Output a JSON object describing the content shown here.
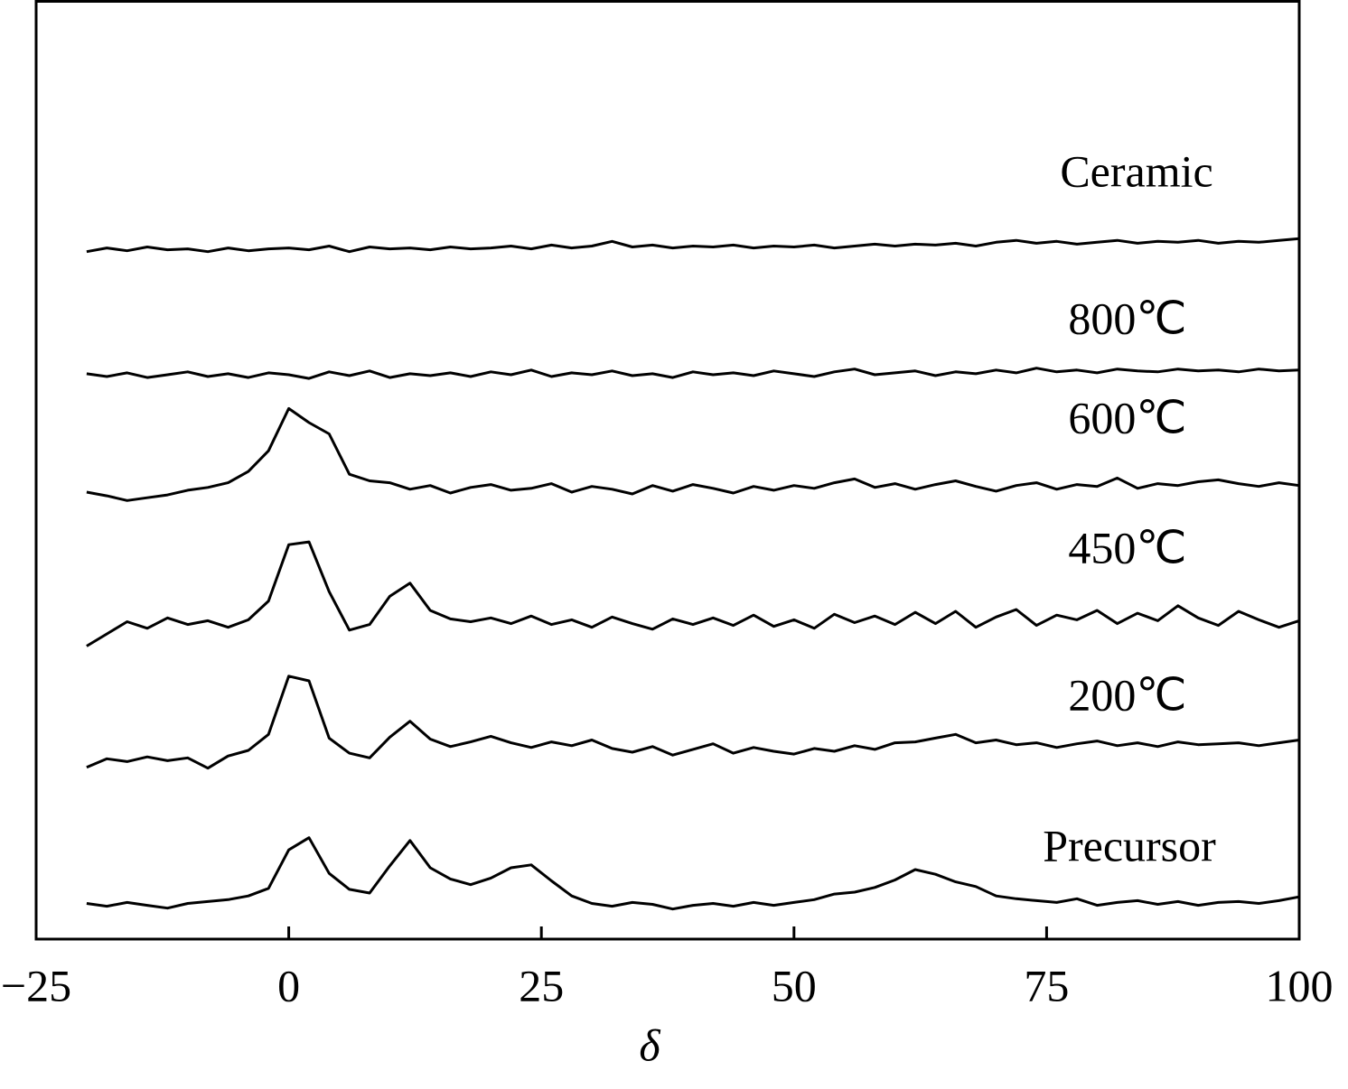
{
  "chart_data": {
    "type": "line",
    "x_label": "δ",
    "x": [
      -20,
      -18,
      -16,
      -14,
      -12,
      -10,
      -8,
      -6,
      -4,
      -2,
      0,
      2,
      4,
      6,
      8,
      10,
      12,
      14,
      16,
      18,
      20,
      22,
      24,
      26,
      28,
      30,
      32,
      34,
      36,
      38,
      40,
      42,
      44,
      46,
      48,
      50,
      52,
      54,
      56,
      58,
      60,
      62,
      64,
      66,
      68,
      70,
      72,
      74,
      76,
      78,
      80,
      82,
      84,
      86,
      88,
      90,
      92,
      94,
      96,
      98,
      100
    ],
    "xlim": [
      -25,
      100
    ],
    "xticks": [
      {
        "value": -25,
        "label": "−25"
      },
      0,
      25,
      50,
      75,
      100
    ],
    "ylim": [
      0,
      100
    ],
    "series": [
      {
        "name": "Precursor",
        "color": "#000000",
        "values": [
          3.8,
          3.5,
          3.9,
          3.6,
          3.3,
          3.8,
          4.0,
          4.2,
          4.6,
          5.4,
          9.5,
          10.8,
          7.0,
          5.3,
          4.9,
          7.8,
          10.5,
          7.6,
          6.4,
          5.8,
          6.5,
          7.6,
          7.9,
          6.2,
          4.6,
          3.8,
          3.5,
          3.9,
          3.7,
          3.2,
          3.6,
          3.8,
          3.5,
          3.9,
          3.6,
          3.9,
          4.2,
          4.8,
          5.0,
          5.5,
          6.3,
          7.4,
          6.9,
          6.1,
          5.6,
          4.6,
          4.3,
          4.1,
          3.9,
          4.3,
          3.6,
          3.9,
          4.1,
          3.7,
          4.0,
          3.6,
          3.9,
          4.0,
          3.8,
          4.1,
          4.5
        ]
      },
      {
        "name": "200℃",
        "color": "#000000",
        "values": [
          18.3,
          19.2,
          18.9,
          19.4,
          19.0,
          19.3,
          18.2,
          19.5,
          20.1,
          21.8,
          28.0,
          27.5,
          21.4,
          19.8,
          19.3,
          21.5,
          23.2,
          21.3,
          20.5,
          21.0,
          21.6,
          20.9,
          20.4,
          21.0,
          20.6,
          21.2,
          20.3,
          19.9,
          20.5,
          19.6,
          20.2,
          20.8,
          19.8,
          20.4,
          20.0,
          19.7,
          20.3,
          20.0,
          20.6,
          20.2,
          20.9,
          21.0,
          21.4,
          21.8,
          20.9,
          21.2,
          20.7,
          20.9,
          20.4,
          20.8,
          21.1,
          20.6,
          20.9,
          20.5,
          21.0,
          20.7,
          20.8,
          20.9,
          20.6,
          20.9,
          21.2
        ]
      },
      {
        "name": "450℃",
        "color": "#000000",
        "values": [
          31.2,
          32.5,
          33.8,
          33.1,
          34.2,
          33.5,
          33.9,
          33.2,
          34.0,
          36.0,
          42.0,
          42.3,
          37.0,
          32.9,
          33.5,
          36.5,
          37.9,
          35.0,
          34.1,
          33.8,
          34.2,
          33.6,
          34.4,
          33.5,
          34.0,
          33.2,
          34.3,
          33.6,
          33.0,
          34.1,
          33.5,
          34.2,
          33.4,
          34.5,
          33.3,
          34.0,
          33.1,
          34.6,
          33.7,
          34.4,
          33.5,
          34.8,
          33.6,
          34.9,
          33.2,
          34.3,
          35.1,
          33.4,
          34.5,
          34.0,
          35.0,
          33.6,
          34.7,
          33.9,
          35.5,
          34.2,
          33.4,
          34.9,
          34.0,
          33.2,
          33.9
        ]
      },
      {
        "name": "600℃",
        "color": "#000000",
        "values": [
          47.6,
          47.2,
          46.7,
          47.0,
          47.3,
          47.8,
          48.1,
          48.6,
          49.8,
          52.0,
          56.5,
          55.0,
          53.8,
          49.5,
          48.8,
          48.6,
          47.9,
          48.3,
          47.5,
          48.1,
          48.4,
          47.8,
          48.0,
          48.5,
          47.6,
          48.2,
          47.9,
          47.4,
          48.3,
          47.7,
          48.4,
          48.0,
          47.5,
          48.2,
          47.8,
          48.3,
          48.0,
          48.6,
          49.0,
          48.1,
          48.5,
          47.9,
          48.4,
          48.8,
          48.2,
          47.7,
          48.3,
          48.6,
          47.9,
          48.4,
          48.2,
          49.1,
          48.0,
          48.5,
          48.3,
          48.7,
          48.9,
          48.5,
          48.2,
          48.6,
          48.3
        ]
      },
      {
        "name": "800℃",
        "color": "#000000",
        "values": [
          60.2,
          59.9,
          60.3,
          59.8,
          60.1,
          60.4,
          59.9,
          60.2,
          59.8,
          60.3,
          60.1,
          59.7,
          60.4,
          60.0,
          60.5,
          59.8,
          60.2,
          60.0,
          60.3,
          59.9,
          60.4,
          60.1,
          60.6,
          59.9,
          60.3,
          60.1,
          60.5,
          60.0,
          60.2,
          59.8,
          60.4,
          60.1,
          60.3,
          60.0,
          60.5,
          60.2,
          59.9,
          60.4,
          60.7,
          60.1,
          60.3,
          60.5,
          60.0,
          60.4,
          60.2,
          60.6,
          60.3,
          60.8,
          60.4,
          60.6,
          60.3,
          60.7,
          60.5,
          60.4,
          60.7,
          60.5,
          60.6,
          60.4,
          60.7,
          60.5,
          60.6
        ]
      },
      {
        "name": "Ceramic",
        "color": "#000000",
        "values": [
          73.2,
          73.6,
          73.3,
          73.7,
          73.4,
          73.5,
          73.2,
          73.6,
          73.3,
          73.5,
          73.6,
          73.4,
          73.8,
          73.2,
          73.7,
          73.5,
          73.6,
          73.4,
          73.7,
          73.5,
          73.6,
          73.8,
          73.5,
          73.9,
          73.6,
          73.8,
          74.3,
          73.7,
          73.9,
          73.6,
          73.8,
          73.7,
          73.9,
          73.6,
          73.8,
          73.7,
          73.9,
          73.6,
          73.8,
          74.0,
          73.8,
          74.0,
          73.9,
          74.1,
          73.8,
          74.2,
          74.4,
          74.1,
          74.3,
          74.0,
          74.2,
          74.4,
          74.1,
          74.3,
          74.2,
          74.4,
          74.1,
          74.3,
          74.2,
          74.4,
          74.6
        ]
      }
    ]
  }
}
